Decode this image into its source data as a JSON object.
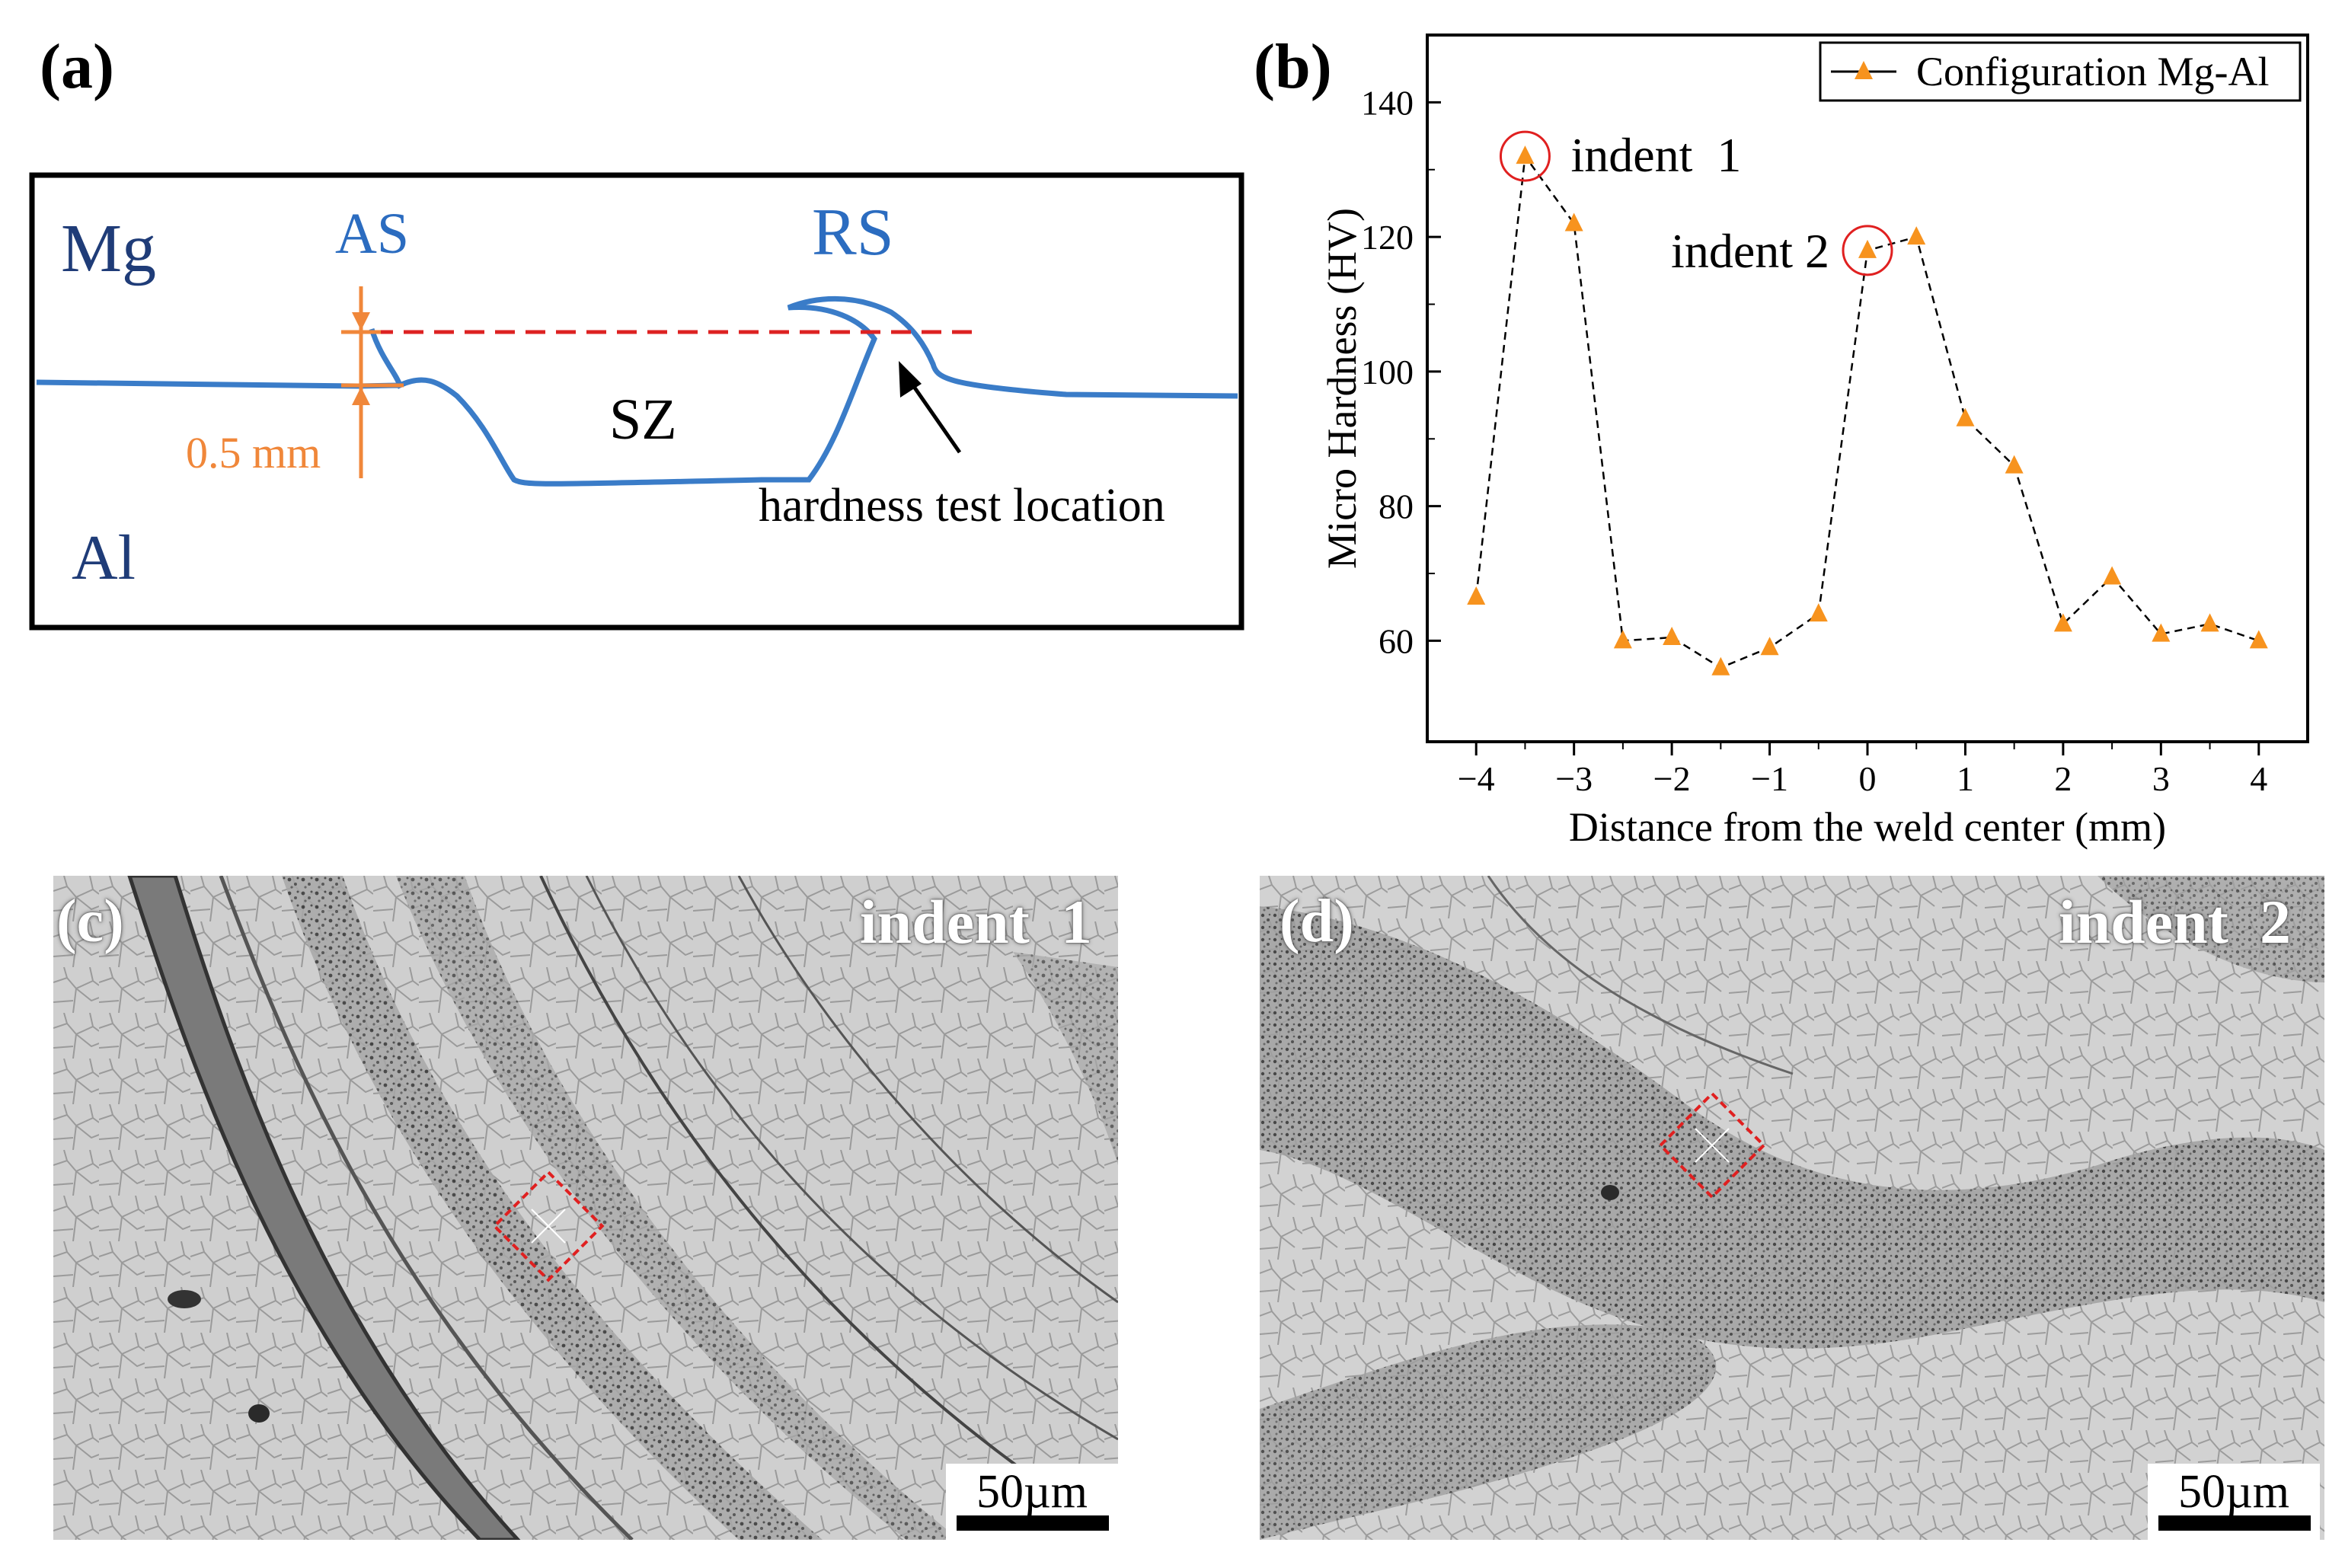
{
  "panels": {
    "a": {
      "label": "(a)",
      "mg": "Mg",
      "as": "AS",
      "rs": "RS",
      "sz": "SZ",
      "al": "Al",
      "dim": "0.5 mm",
      "arrow_text": "hardness test location",
      "colors": {
        "weld": "#3a7cc8",
        "dim": "#f0873a",
        "dash": "#dd2222",
        "label_dark": "#1f3c78",
        "label_blue": "#2b6cc0"
      }
    },
    "b": {
      "label": "(b)"
    },
    "c": {
      "label": "(c)",
      "indent": "indent  1",
      "scale": "50µm"
    },
    "d": {
      "label": "(d)",
      "indent": "indent  2",
      "scale": "50µm"
    }
  },
  "chart_data": {
    "type": "line",
    "xlabel": "Distance from the weld center (mm)",
    "ylabel": "Micro Hardness (HV)",
    "xlim": [
      -4.5,
      4.5
    ],
    "ylim": [
      45,
      150
    ],
    "xticks": [
      -4,
      -3,
      -2,
      -1,
      0,
      1,
      2,
      3,
      4
    ],
    "xtick_labels": [
      "−4",
      "−3",
      "−2",
      "−1",
      "0",
      "1",
      "2",
      "3",
      "4"
    ],
    "yticks": [
      60,
      80,
      100,
      120,
      140
    ],
    "ytick_labels": [
      "60",
      "80",
      "100",
      "120",
      "140"
    ],
    "legend_position": "top-right",
    "marker_color": "#f7931e",
    "line_style": "dashed",
    "series": [
      {
        "name": "Configuration Mg-Al",
        "x": [
          -4,
          -3.5,
          -3,
          -2.5,
          -2,
          -1.5,
          -1,
          -0.5,
          0,
          0.5,
          1,
          1.5,
          2,
          2.5,
          3,
          3.5,
          4
        ],
        "y": [
          66.5,
          132,
          122,
          60,
          60.5,
          56,
          59,
          64,
          118,
          120,
          93,
          86,
          62.5,
          69.5,
          61,
          62.5,
          60
        ]
      }
    ],
    "annotations": [
      {
        "text": "indent  1",
        "x": -3.5,
        "y": 132
      },
      {
        "text": "indent 2",
        "x": 0,
        "y": 118
      }
    ]
  }
}
